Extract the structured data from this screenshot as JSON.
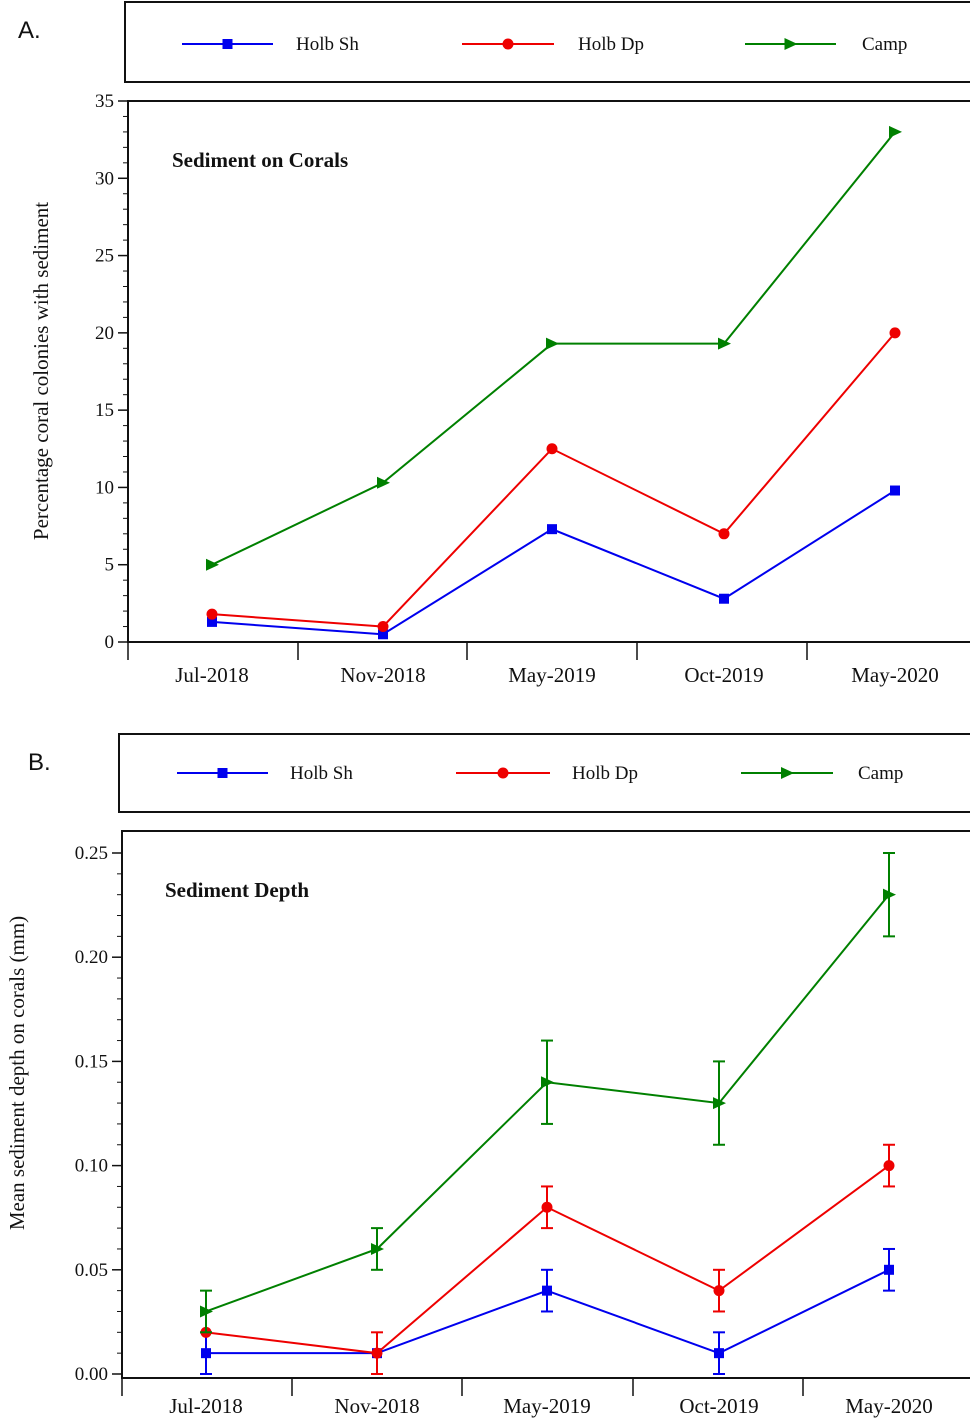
{
  "chart_data": [
    {
      "panel": "A.",
      "type": "line",
      "title": "Sediment on Corals",
      "xlabel": "",
      "ylabel": "Percentage coral colonies with sediment",
      "categories": [
        "Jul-2018",
        "Nov-2018",
        "May-2019",
        "Oct-2019",
        "May-2020"
      ],
      "ylim": [
        0,
        35
      ],
      "yticks": [
        "0",
        "5",
        "10",
        "15",
        "20",
        "25",
        "30",
        "35"
      ],
      "grid": false,
      "legend_position": "top",
      "error_bars": false,
      "series": [
        {
          "name": "Holb Sh",
          "color": "#0000ee",
          "marker": "square",
          "values": [
            1.3,
            0.5,
            7.3,
            2.8,
            9.8
          ]
        },
        {
          "name": "Holb Dp",
          "color": "#ee0000",
          "marker": "circle",
          "values": [
            1.8,
            1.0,
            12.5,
            7.0,
            20.0
          ]
        },
        {
          "name": "Camp",
          "color": "#008000",
          "marker": "triangle-right",
          "values": [
            5.0,
            10.3,
            19.3,
            19.3,
            33.0
          ]
        }
      ]
    },
    {
      "panel": "B.",
      "type": "line",
      "title": "Sediment Depth",
      "xlabel": "",
      "ylabel": "Mean sediment depth on corals (mm)",
      "categories": [
        "Jul-2018",
        "Nov-2018",
        "May-2019",
        "Oct-2019",
        "May-2020"
      ],
      "ylim": [
        0,
        0.25
      ],
      "yticks": [
        "0.00",
        "0.05",
        "0.10",
        "0.15",
        "0.20",
        "0.25"
      ],
      "grid": false,
      "legend_position": "top",
      "error_bars": true,
      "series": [
        {
          "name": "Holb Sh",
          "color": "#0000ee",
          "marker": "square",
          "values": [
            0.01,
            0.01,
            0.04,
            0.01,
            0.05
          ],
          "errors": [
            0.01,
            0.0,
            0.01,
            0.01,
            0.01
          ]
        },
        {
          "name": "Holb Dp",
          "color": "#ee0000",
          "marker": "circle",
          "values": [
            0.02,
            0.01,
            0.08,
            0.04,
            0.1
          ],
          "errors": [
            0.0,
            0.01,
            0.01,
            0.01,
            0.01
          ]
        },
        {
          "name": "Camp",
          "color": "#008000",
          "marker": "triangle-right",
          "values": [
            0.03,
            0.06,
            0.14,
            0.13,
            0.23
          ],
          "errors": [
            0.01,
            0.01,
            0.02,
            0.02,
            0.02
          ]
        }
      ]
    }
  ]
}
